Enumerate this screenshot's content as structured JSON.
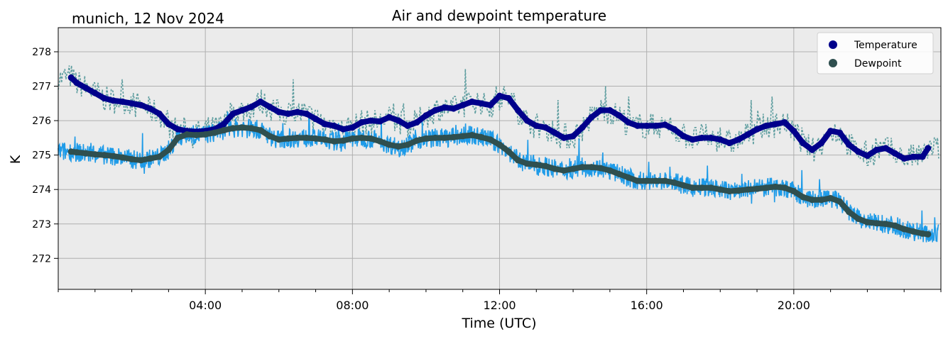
{
  "chart_data": {
    "type": "line",
    "title": "Air and dewpoint temperature",
    "location_date": "munich, 12 Nov 2024",
    "xlabel": "Time (UTC)",
    "ylabel": "K",
    "xlim_hours": [
      0,
      24
    ],
    "ylim": [
      271.1,
      278.7
    ],
    "x_ticks": [
      {
        "hour": 4,
        "label": "04:00"
      },
      {
        "hour": 8,
        "label": "08:00"
      },
      {
        "hour": 12,
        "label": "12:00"
      },
      {
        "hour": 16,
        "label": "16:00"
      },
      {
        "hour": 20,
        "label": "20:00"
      }
    ],
    "y_ticks": [
      272,
      273,
      274,
      275,
      276,
      277,
      278
    ],
    "grid": true,
    "legend_position": "top-right",
    "colors": {
      "plot_background": "#ebebeb",
      "grid": "#b0b0b0",
      "temperature": "#00008b",
      "temperature_raw": "#5f9ea0",
      "dewpoint": "#2f4f4f",
      "dewpoint_raw": "#1e9be8"
    },
    "series": [
      {
        "name": "Temperature",
        "key": "temperature",
        "x_hours": [
          0.35,
          0.5,
          0.75,
          1.0,
          1.25,
          1.5,
          1.75,
          2.0,
          2.25,
          2.5,
          2.75,
          3.0,
          3.25,
          3.5,
          3.75,
          4.0,
          4.25,
          4.5,
          4.75,
          5.0,
          5.25,
          5.5,
          5.75,
          6.0,
          6.25,
          6.5,
          6.75,
          7.0,
          7.25,
          7.5,
          7.75,
          8.0,
          8.25,
          8.5,
          8.75,
          9.0,
          9.25,
          9.5,
          9.75,
          10.0,
          10.25,
          10.5,
          10.75,
          11.0,
          11.25,
          11.5,
          11.75,
          12.0,
          12.25,
          12.5,
          12.75,
          13.0,
          13.25,
          13.5,
          13.75,
          14.0,
          14.25,
          14.5,
          14.75,
          15.0,
          15.25,
          15.5,
          15.75,
          16.0,
          16.25,
          16.5,
          16.75,
          17.0,
          17.25,
          17.5,
          17.75,
          18.0,
          18.25,
          18.5,
          18.75,
          19.0,
          19.25,
          19.5,
          19.75,
          20.0,
          20.25,
          20.5,
          20.75,
          21.0,
          21.25,
          21.5,
          21.75,
          22.0,
          22.25,
          22.5,
          22.75,
          23.0,
          23.25,
          23.5,
          23.65
        ],
        "values": [
          277.25,
          277.1,
          276.95,
          276.8,
          276.65,
          276.58,
          276.55,
          276.5,
          276.45,
          276.35,
          276.2,
          275.9,
          275.75,
          275.7,
          275.68,
          275.7,
          275.75,
          275.9,
          276.2,
          276.3,
          276.4,
          276.55,
          276.4,
          276.25,
          276.2,
          276.25,
          276.2,
          276.05,
          275.9,
          275.85,
          275.75,
          275.8,
          275.95,
          276.0,
          275.98,
          276.1,
          276.0,
          275.85,
          275.95,
          276.15,
          276.3,
          276.38,
          276.35,
          276.45,
          276.55,
          276.5,
          276.45,
          276.72,
          276.65,
          276.3,
          276.0,
          275.85,
          275.8,
          275.65,
          275.5,
          275.55,
          275.8,
          276.1,
          276.3,
          276.3,
          276.15,
          275.95,
          275.85,
          275.85,
          275.85,
          275.88,
          275.75,
          275.55,
          275.45,
          275.5,
          275.5,
          275.45,
          275.35,
          275.45,
          275.6,
          275.75,
          275.85,
          275.9,
          275.95,
          275.7,
          275.35,
          275.15,
          275.35,
          275.7,
          275.65,
          275.3,
          275.1,
          274.98,
          275.15,
          275.2,
          275.05,
          274.9,
          274.95,
          274.95,
          275.2
        ]
      },
      {
        "name": "Dewpoint",
        "key": "dewpoint",
        "x_hours": [
          0.35,
          0.5,
          0.75,
          1.0,
          1.25,
          1.5,
          1.75,
          2.0,
          2.25,
          2.5,
          2.75,
          3.0,
          3.25,
          3.5,
          3.75,
          4.0,
          4.25,
          4.5,
          4.75,
          5.0,
          5.25,
          5.5,
          5.75,
          6.0,
          6.25,
          6.5,
          6.75,
          7.0,
          7.25,
          7.5,
          7.75,
          8.0,
          8.25,
          8.5,
          8.75,
          9.0,
          9.25,
          9.5,
          9.75,
          10.0,
          10.25,
          10.5,
          10.75,
          11.0,
          11.25,
          11.5,
          11.75,
          12.0,
          12.25,
          12.5,
          12.75,
          13.0,
          13.25,
          13.5,
          13.75,
          14.0,
          14.25,
          14.5,
          14.75,
          15.0,
          15.25,
          15.5,
          15.75,
          16.0,
          16.25,
          16.5,
          16.75,
          17.0,
          17.25,
          17.5,
          17.75,
          18.0,
          18.25,
          18.5,
          18.75,
          19.0,
          19.25,
          19.5,
          19.75,
          20.0,
          20.25,
          20.5,
          20.75,
          21.0,
          21.25,
          21.5,
          21.75,
          22.0,
          22.25,
          22.5,
          22.75,
          23.0,
          23.25,
          23.5,
          23.65
        ],
        "values": [
          275.1,
          275.08,
          275.05,
          275.02,
          275.0,
          274.97,
          274.93,
          274.88,
          274.85,
          274.9,
          274.95,
          275.15,
          275.5,
          275.6,
          275.58,
          275.6,
          275.65,
          275.72,
          275.78,
          275.8,
          275.78,
          275.72,
          275.55,
          275.45,
          275.48,
          275.5,
          275.5,
          275.48,
          275.45,
          275.4,
          275.42,
          275.48,
          275.5,
          275.48,
          275.4,
          275.3,
          275.25,
          275.3,
          275.42,
          275.48,
          275.5,
          275.5,
          275.52,
          275.55,
          275.58,
          275.52,
          275.45,
          275.3,
          275.1,
          274.85,
          274.75,
          274.72,
          274.68,
          274.6,
          274.55,
          274.6,
          274.65,
          274.65,
          274.62,
          274.55,
          274.45,
          274.35,
          274.25,
          274.25,
          274.25,
          274.25,
          274.2,
          274.12,
          274.05,
          274.05,
          274.05,
          274.0,
          273.95,
          273.97,
          274.0,
          274.02,
          274.05,
          274.08,
          274.05,
          273.95,
          273.78,
          273.7,
          273.7,
          273.75,
          273.65,
          273.35,
          273.15,
          273.05,
          273.02,
          273.0,
          272.95,
          272.85,
          272.78,
          272.72,
          272.7
        ]
      }
    ]
  }
}
